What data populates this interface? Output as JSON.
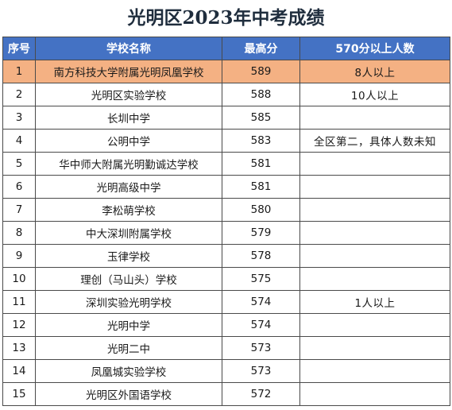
{
  "title": "光明区2023年中考成绩",
  "headers": {
    "rank": "序号",
    "school": "学校名称",
    "max_score": "最高分",
    "count_570": "570分以上人数"
  },
  "rows": [
    {
      "rank": "1",
      "school": "南方科技大学附属光明凤凰学校",
      "max_score": "589",
      "count_570": "8人以上",
      "highlight": true
    },
    {
      "rank": "2",
      "school": "光明区实验学校",
      "max_score": "588",
      "count_570": "10人以上"
    },
    {
      "rank": "3",
      "school": "长圳中学",
      "max_score": "585",
      "count_570": ""
    },
    {
      "rank": "4",
      "school": "公明中学",
      "max_score": "583",
      "count_570": "全区第二，具体人数未知"
    },
    {
      "rank": "5",
      "school": "华中师大附属光明勤诚达学校",
      "max_score": "581",
      "count_570": ""
    },
    {
      "rank": "6",
      "school": "光明高级中学",
      "max_score": "581",
      "count_570": ""
    },
    {
      "rank": "7",
      "school": "李松萌学校",
      "max_score": "580",
      "count_570": ""
    },
    {
      "rank": "8",
      "school": "中大深圳附属学校",
      "max_score": "579",
      "count_570": ""
    },
    {
      "rank": "9",
      "school": "玉律学校",
      "max_score": "578",
      "count_570": ""
    },
    {
      "rank": "10",
      "school": "理创（马山头）学校",
      "max_score": "575",
      "count_570": ""
    },
    {
      "rank": "11",
      "school": "深圳实验光明学校",
      "max_score": "574",
      "count_570": "1人以上"
    },
    {
      "rank": "12",
      "school": "光明中学",
      "max_score": "574",
      "count_570": ""
    },
    {
      "rank": "13",
      "school": "光明二中",
      "max_score": "573",
      "count_570": ""
    },
    {
      "rank": "14",
      "school": "凤凰城实验学校",
      "max_score": "573",
      "count_570": ""
    },
    {
      "rank": "15",
      "school": "光明区外国语学校",
      "max_score": "572",
      "count_570": ""
    }
  ],
  "colors": {
    "header_bg": "#4472c4",
    "header_text": "#ffffff",
    "highlight_row": "#f4b183",
    "title_text": "#1f2d3d"
  }
}
